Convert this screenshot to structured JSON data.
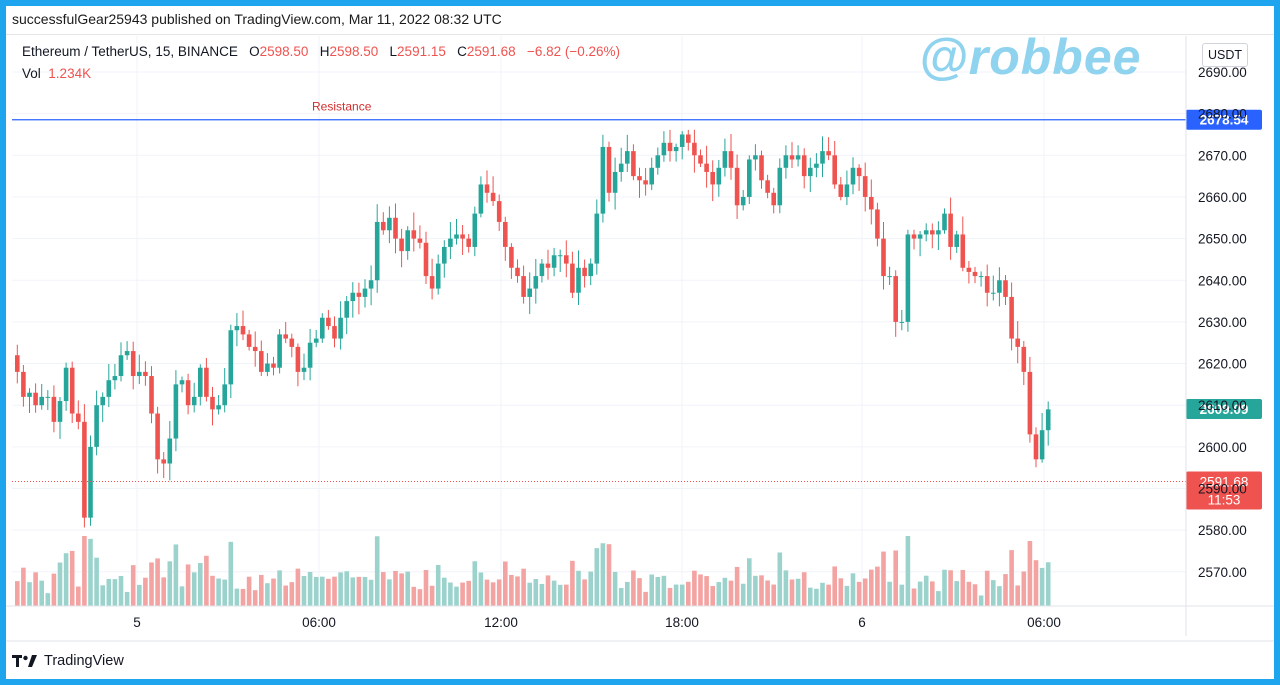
{
  "publisher_line": "successfulGear25943 published on TradingView.com, Mar 11, 2022 08:32 UTC",
  "watermark": "@robbee",
  "currency_button": "USDT",
  "footer_brand": "TradingView",
  "legend": {
    "symbol": "Ethereum / TetherUS, 15, BINANCE",
    "open_label": "O",
    "open": "2598.50",
    "high_label": "H",
    "high": "2598.50",
    "low_label": "L",
    "low": "2591.15",
    "close_label": "C",
    "close": "2591.68",
    "change": "−6.82 (−0.26%)",
    "vol_label": "Vol",
    "vol": "1.234K"
  },
  "colors": {
    "up": "#26a69a",
    "down": "#ef5350",
    "up_volume": "#9bd3cc",
    "down_volume": "#f3a3a1",
    "resistance_line": "#2962ff",
    "current_price": "#26a69a",
    "last_close": "#ef5350"
  },
  "chart_data": {
    "type": "candlestick",
    "y_axis": {
      "min": 2565,
      "max": 2692,
      "ticks": [
        "2570.00",
        "2580.00",
        "2590.00",
        "2600.00",
        "2610.00",
        "2620.00",
        "2630.00",
        "2640.00",
        "2650.00",
        "2660.00",
        "2670.00",
        "2680.00",
        "2690.00"
      ]
    },
    "x_axis": {
      "ticks": [
        "5",
        "06:00",
        "12:00",
        "18:00",
        "6",
        "06:00"
      ]
    },
    "resistance": {
      "label": "Resistance",
      "value": 2678.54,
      "label_text": "2678.54"
    },
    "current_price": {
      "value": 2609.09,
      "label_text": "2609.09"
    },
    "last_close": {
      "value": 2591.68,
      "label_text": "2591.68",
      "countdown": "11:53"
    },
    "close_series": [
      2618,
      2612,
      2613,
      2610,
      2612,
      2612,
      2606,
      2611,
      2619,
      2608,
      2606,
      2583,
      2600,
      2610,
      2612,
      2616,
      2617,
      2622,
      2623,
      2617,
      2618,
      2617,
      2608,
      2597,
      2596,
      2602,
      2615,
      2616,
      2610,
      2612,
      2619,
      2612,
      2609,
      2610,
      2615,
      2628,
      2629,
      2627,
      2624,
      2623,
      2618,
      2620,
      2619,
      2627,
      2626,
      2624,
      2618,
      2619,
      2625,
      2626,
      2631,
      2629,
      2626,
      2631,
      2635,
      2637,
      2636,
      2638,
      2640,
      2654,
      2652,
      2655,
      2650,
      2647,
      2652,
      2650,
      2649,
      2641,
      2638,
      2644,
      2648,
      2650,
      2651,
      2650,
      2648,
      2656,
      2663,
      2661,
      2659,
      2654,
      2648,
      2643,
      2641,
      2636,
      2638,
      2641,
      2644,
      2643,
      2646,
      2646,
      2644,
      2637,
      2643,
      2641,
      2644,
      2656,
      2672,
      2661,
      2666,
      2668,
      2671,
      2665,
      2664,
      2663,
      2667,
      2670,
      2673,
      2671,
      2672,
      2675,
      2673,
      2670,
      2668,
      2666,
      2663,
      2667,
      2671,
      2667,
      2658,
      2660,
      2669,
      2670,
      2664,
      2661,
      2658,
      2667,
      2670,
      2669,
      2670,
      2665,
      2667,
      2668,
      2671,
      2670,
      2663,
      2660,
      2663,
      2667,
      2665,
      2660,
      2657,
      2650,
      2641,
      2641,
      2630,
      2630,
      2651,
      2650,
      2651,
      2652,
      2651,
      2652,
      2656,
      2648,
      2651,
      2643,
      2642,
      2641,
      2641,
      2637,
      2637,
      2640,
      2636,
      2626,
      2624,
      2618,
      2603,
      2597,
      2604,
      2609
    ]
  }
}
